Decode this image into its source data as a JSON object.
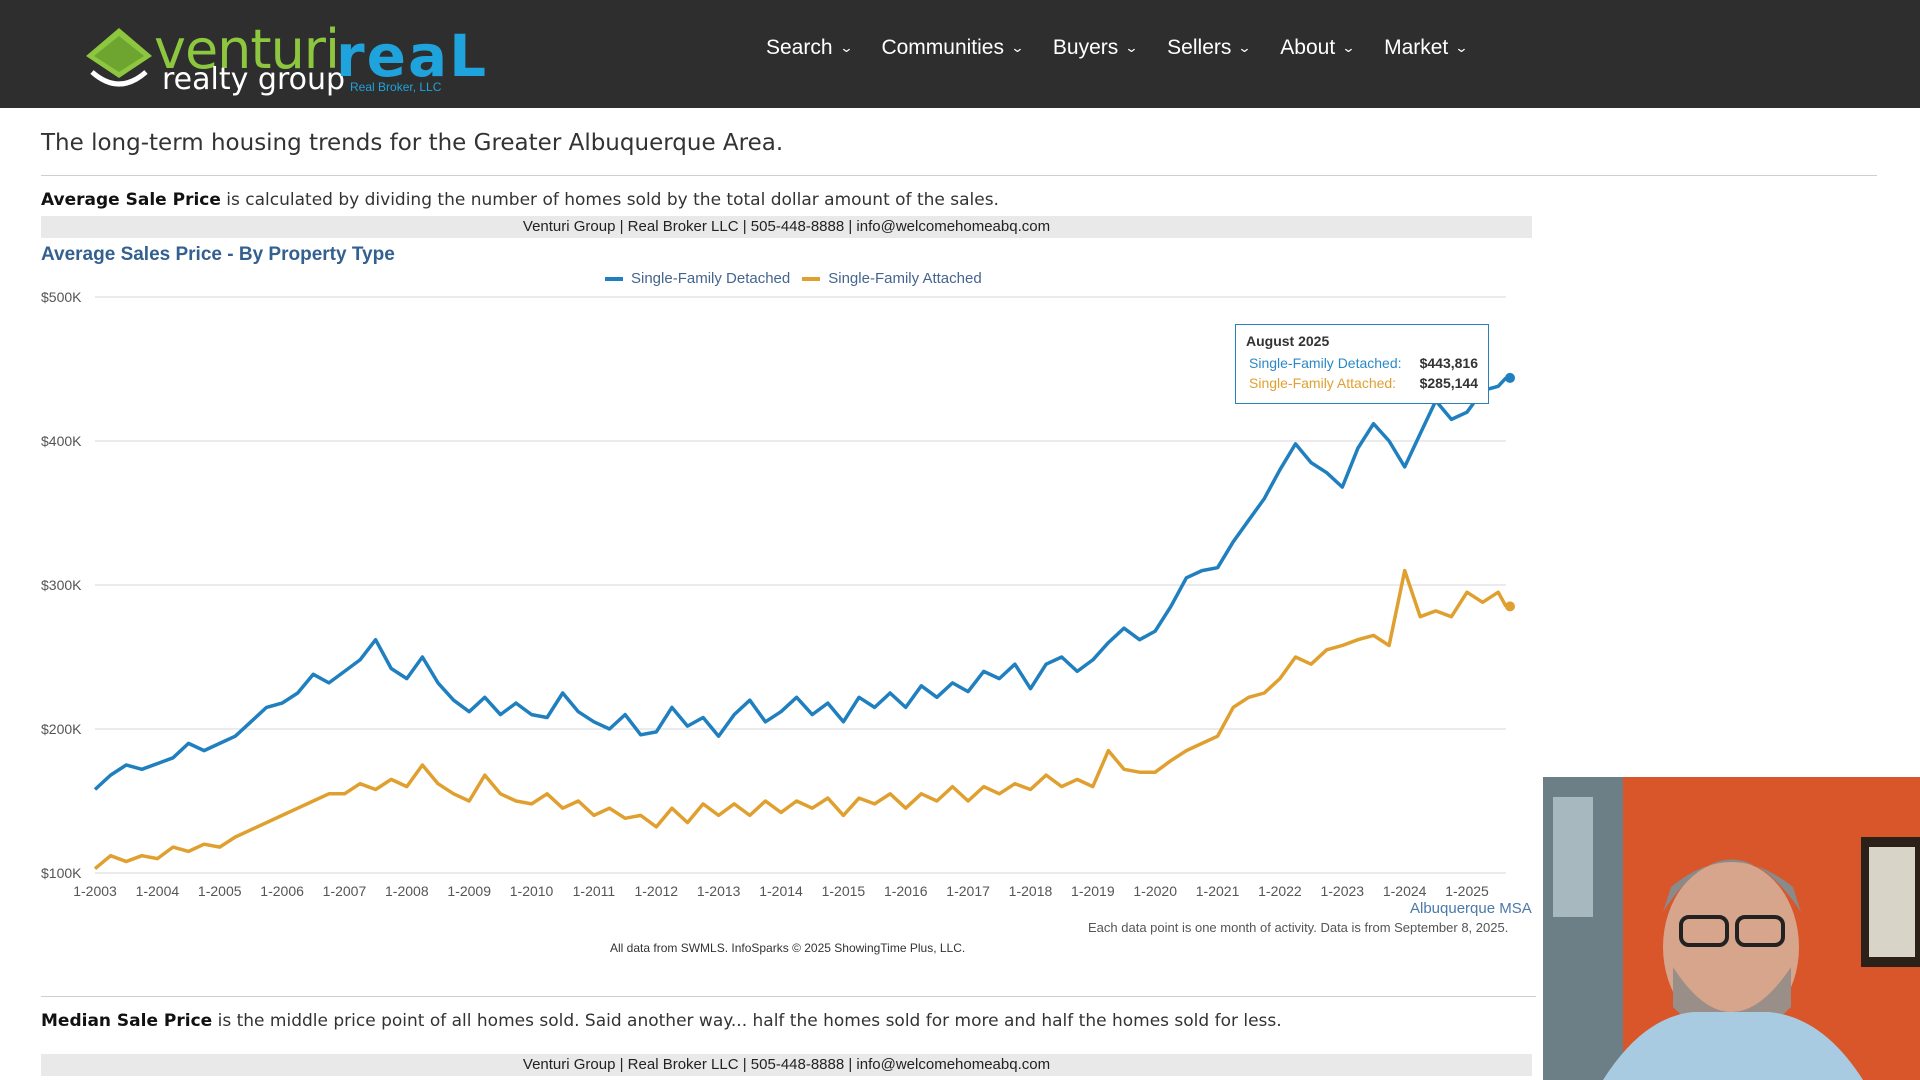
{
  "header": {
    "logo_venturi": "venturi",
    "logo_realty_group": "realty group",
    "logo_real": "reaL",
    "logo_real_broker": "Real Broker, LLC",
    "nav": [
      "Search",
      "Communities",
      "Buyers",
      "Sellers",
      "About",
      "Market"
    ]
  },
  "intro": "The long-term housing trends for the Greater Albuquerque Area.",
  "section1": {
    "term": "Average Sale Price",
    "text": " is calculated by dividing the number of homes sold by the total dollar amount of the sales.",
    "contact": "Venturi Group | Real Broker LLC | 505-448-8888 | info@welcomehomeabq.com"
  },
  "chart_data": {
    "type": "line",
    "title": "Average Sales Price - By Property Type",
    "ylim": [
      100000,
      500000
    ],
    "y_ticks": [
      {
        "value": 100000,
        "label": "$100K"
      },
      {
        "value": 200000,
        "label": "$200K"
      },
      {
        "value": 300000,
        "label": "$300K"
      },
      {
        "value": 400000,
        "label": "$400K"
      },
      {
        "value": 500000,
        "label": "$500K"
      }
    ],
    "x_ticks": [
      "1-2003",
      "1-2004",
      "1-2005",
      "1-2006",
      "1-2007",
      "1-2008",
      "1-2009",
      "1-2010",
      "1-2011",
      "1-2012",
      "1-2013",
      "1-2014",
      "1-2015",
      "1-2016",
      "1-2017",
      "1-2018",
      "1-2019",
      "1-2020",
      "1-2021",
      "1-2022",
      "1-2023",
      "1-2024",
      "1-2025"
    ],
    "x_start_year": 2003,
    "x_end_year": 2025.625,
    "grid": true,
    "legend_position": "top-center",
    "series": [
      {
        "name": "Single-Family Detached",
        "color": "#1f7fbf",
        "points": [
          {
            "x": 2003.0,
            "y": 158000
          },
          {
            "x": 2003.25,
            "y": 168000
          },
          {
            "x": 2003.5,
            "y": 175000
          },
          {
            "x": 2003.75,
            "y": 172000
          },
          {
            "x": 2004.0,
            "y": 176000
          },
          {
            "x": 2004.25,
            "y": 180000
          },
          {
            "x": 2004.5,
            "y": 190000
          },
          {
            "x": 2004.75,
            "y": 185000
          },
          {
            "x": 2005.0,
            "y": 190000
          },
          {
            "x": 2005.25,
            "y": 195000
          },
          {
            "x": 2005.5,
            "y": 205000
          },
          {
            "x": 2005.75,
            "y": 215000
          },
          {
            "x": 2006.0,
            "y": 218000
          },
          {
            "x": 2006.25,
            "y": 225000
          },
          {
            "x": 2006.5,
            "y": 238000
          },
          {
            "x": 2006.75,
            "y": 232000
          },
          {
            "x": 2007.0,
            "y": 240000
          },
          {
            "x": 2007.25,
            "y": 248000
          },
          {
            "x": 2007.5,
            "y": 262000
          },
          {
            "x": 2007.75,
            "y": 242000
          },
          {
            "x": 2008.0,
            "y": 235000
          },
          {
            "x": 2008.25,
            "y": 250000
          },
          {
            "x": 2008.5,
            "y": 232000
          },
          {
            "x": 2008.75,
            "y": 220000
          },
          {
            "x": 2009.0,
            "y": 212000
          },
          {
            "x": 2009.25,
            "y": 222000
          },
          {
            "x": 2009.5,
            "y": 210000
          },
          {
            "x": 2009.75,
            "y": 218000
          },
          {
            "x": 2010.0,
            "y": 210000
          },
          {
            "x": 2010.25,
            "y": 208000
          },
          {
            "x": 2010.5,
            "y": 225000
          },
          {
            "x": 2010.75,
            "y": 212000
          },
          {
            "x": 2011.0,
            "y": 205000
          },
          {
            "x": 2011.25,
            "y": 200000
          },
          {
            "x": 2011.5,
            "y": 210000
          },
          {
            "x": 2011.75,
            "y": 196000
          },
          {
            "x": 2012.0,
            "y": 198000
          },
          {
            "x": 2012.25,
            "y": 215000
          },
          {
            "x": 2012.5,
            "y": 202000
          },
          {
            "x": 2012.75,
            "y": 208000
          },
          {
            "x": 2013.0,
            "y": 195000
          },
          {
            "x": 2013.25,
            "y": 210000
          },
          {
            "x": 2013.5,
            "y": 220000
          },
          {
            "x": 2013.75,
            "y": 205000
          },
          {
            "x": 2014.0,
            "y": 212000
          },
          {
            "x": 2014.25,
            "y": 222000
          },
          {
            "x": 2014.5,
            "y": 210000
          },
          {
            "x": 2014.75,
            "y": 218000
          },
          {
            "x": 2015.0,
            "y": 205000
          },
          {
            "x": 2015.25,
            "y": 222000
          },
          {
            "x": 2015.5,
            "y": 215000
          },
          {
            "x": 2015.75,
            "y": 225000
          },
          {
            "x": 2016.0,
            "y": 215000
          },
          {
            "x": 2016.25,
            "y": 230000
          },
          {
            "x": 2016.5,
            "y": 222000
          },
          {
            "x": 2016.75,
            "y": 232000
          },
          {
            "x": 2017.0,
            "y": 226000
          },
          {
            "x": 2017.25,
            "y": 240000
          },
          {
            "x": 2017.5,
            "y": 235000
          },
          {
            "x": 2017.75,
            "y": 245000
          },
          {
            "x": 2018.0,
            "y": 228000
          },
          {
            "x": 2018.25,
            "y": 245000
          },
          {
            "x": 2018.5,
            "y": 250000
          },
          {
            "x": 2018.75,
            "y": 240000
          },
          {
            "x": 2019.0,
            "y": 248000
          },
          {
            "x": 2019.25,
            "y": 260000
          },
          {
            "x": 2019.5,
            "y": 270000
          },
          {
            "x": 2019.75,
            "y": 262000
          },
          {
            "x": 2020.0,
            "y": 268000
          },
          {
            "x": 2020.25,
            "y": 285000
          },
          {
            "x": 2020.5,
            "y": 305000
          },
          {
            "x": 2020.75,
            "y": 310000
          },
          {
            "x": 2021.0,
            "y": 312000
          },
          {
            "x": 2021.25,
            "y": 330000
          },
          {
            "x": 2021.5,
            "y": 345000
          },
          {
            "x": 2021.75,
            "y": 360000
          },
          {
            "x": 2022.0,
            "y": 380000
          },
          {
            "x": 2022.25,
            "y": 398000
          },
          {
            "x": 2022.5,
            "y": 385000
          },
          {
            "x": 2022.75,
            "y": 378000
          },
          {
            "x": 2023.0,
            "y": 368000
          },
          {
            "x": 2023.25,
            "y": 395000
          },
          {
            "x": 2023.5,
            "y": 412000
          },
          {
            "x": 2023.75,
            "y": 400000
          },
          {
            "x": 2024.0,
            "y": 382000
          },
          {
            "x": 2024.25,
            "y": 405000
          },
          {
            "x": 2024.5,
            "y": 428000
          },
          {
            "x": 2024.75,
            "y": 415000
          },
          {
            "x": 2025.0,
            "y": 420000
          },
          {
            "x": 2025.25,
            "y": 435000
          },
          {
            "x": 2025.5,
            "y": 438000
          },
          {
            "x": 2025.625,
            "y": 443816
          }
        ]
      },
      {
        "name": "Single-Family Attached",
        "color": "#e0a030",
        "points": [
          {
            "x": 2003.0,
            "y": 103000
          },
          {
            "x": 2003.25,
            "y": 112000
          },
          {
            "x": 2003.5,
            "y": 108000
          },
          {
            "x": 2003.75,
            "y": 112000
          },
          {
            "x": 2004.0,
            "y": 110000
          },
          {
            "x": 2004.25,
            "y": 118000
          },
          {
            "x": 2004.5,
            "y": 115000
          },
          {
            "x": 2004.75,
            "y": 120000
          },
          {
            "x": 2005.0,
            "y": 118000
          },
          {
            "x": 2005.25,
            "y": 125000
          },
          {
            "x": 2005.5,
            "y": 130000
          },
          {
            "x": 2005.75,
            "y": 135000
          },
          {
            "x": 2006.0,
            "y": 140000
          },
          {
            "x": 2006.25,
            "y": 145000
          },
          {
            "x": 2006.5,
            "y": 150000
          },
          {
            "x": 2006.75,
            "y": 155000
          },
          {
            "x": 2007.0,
            "y": 155000
          },
          {
            "x": 2007.25,
            "y": 162000
          },
          {
            "x": 2007.5,
            "y": 158000
          },
          {
            "x": 2007.75,
            "y": 165000
          },
          {
            "x": 2008.0,
            "y": 160000
          },
          {
            "x": 2008.25,
            "y": 175000
          },
          {
            "x": 2008.5,
            "y": 162000
          },
          {
            "x": 2008.75,
            "y": 155000
          },
          {
            "x": 2009.0,
            "y": 150000
          },
          {
            "x": 2009.25,
            "y": 168000
          },
          {
            "x": 2009.5,
            "y": 155000
          },
          {
            "x": 2009.75,
            "y": 150000
          },
          {
            "x": 2010.0,
            "y": 148000
          },
          {
            "x": 2010.25,
            "y": 155000
          },
          {
            "x": 2010.5,
            "y": 145000
          },
          {
            "x": 2010.75,
            "y": 150000
          },
          {
            "x": 2011.0,
            "y": 140000
          },
          {
            "x": 2011.25,
            "y": 145000
          },
          {
            "x": 2011.5,
            "y": 138000
          },
          {
            "x": 2011.75,
            "y": 140000
          },
          {
            "x": 2012.0,
            "y": 132000
          },
          {
            "x": 2012.25,
            "y": 145000
          },
          {
            "x": 2012.5,
            "y": 135000
          },
          {
            "x": 2012.75,
            "y": 148000
          },
          {
            "x": 2013.0,
            "y": 140000
          },
          {
            "x": 2013.25,
            "y": 148000
          },
          {
            "x": 2013.5,
            "y": 140000
          },
          {
            "x": 2013.75,
            "y": 150000
          },
          {
            "x": 2014.0,
            "y": 142000
          },
          {
            "x": 2014.25,
            "y": 150000
          },
          {
            "x": 2014.5,
            "y": 145000
          },
          {
            "x": 2014.75,
            "y": 152000
          },
          {
            "x": 2015.0,
            "y": 140000
          },
          {
            "x": 2015.25,
            "y": 152000
          },
          {
            "x": 2015.5,
            "y": 148000
          },
          {
            "x": 2015.75,
            "y": 155000
          },
          {
            "x": 2016.0,
            "y": 145000
          },
          {
            "x": 2016.25,
            "y": 155000
          },
          {
            "x": 2016.5,
            "y": 150000
          },
          {
            "x": 2016.75,
            "y": 160000
          },
          {
            "x": 2017.0,
            "y": 150000
          },
          {
            "x": 2017.25,
            "y": 160000
          },
          {
            "x": 2017.5,
            "y": 155000
          },
          {
            "x": 2017.75,
            "y": 162000
          },
          {
            "x": 2018.0,
            "y": 158000
          },
          {
            "x": 2018.25,
            "y": 168000
          },
          {
            "x": 2018.5,
            "y": 160000
          },
          {
            "x": 2018.75,
            "y": 165000
          },
          {
            "x": 2019.0,
            "y": 160000
          },
          {
            "x": 2019.25,
            "y": 185000
          },
          {
            "x": 2019.5,
            "y": 172000
          },
          {
            "x": 2019.75,
            "y": 170000
          },
          {
            "x": 2020.0,
            "y": 170000
          },
          {
            "x": 2020.25,
            "y": 178000
          },
          {
            "x": 2020.5,
            "y": 185000
          },
          {
            "x": 2020.75,
            "y": 190000
          },
          {
            "x": 2021.0,
            "y": 195000
          },
          {
            "x": 2021.25,
            "y": 215000
          },
          {
            "x": 2021.5,
            "y": 222000
          },
          {
            "x": 2021.75,
            "y": 225000
          },
          {
            "x": 2022.0,
            "y": 235000
          },
          {
            "x": 2022.25,
            "y": 250000
          },
          {
            "x": 2022.5,
            "y": 245000
          },
          {
            "x": 2022.75,
            "y": 255000
          },
          {
            "x": 2023.0,
            "y": 258000
          },
          {
            "x": 2023.25,
            "y": 262000
          },
          {
            "x": 2023.5,
            "y": 265000
          },
          {
            "x": 2023.75,
            "y": 258000
          },
          {
            "x": 2024.0,
            "y": 310000
          },
          {
            "x": 2024.25,
            "y": 278000
          },
          {
            "x": 2024.5,
            "y": 282000
          },
          {
            "x": 2024.75,
            "y": 278000
          },
          {
            "x": 2025.0,
            "y": 295000
          },
          {
            "x": 2025.25,
            "y": 288000
          },
          {
            "x": 2025.5,
            "y": 295000
          },
          {
            "x": 2025.625,
            "y": 285144
          }
        ]
      }
    ],
    "tooltip": {
      "title": "August 2025",
      "rows": [
        {
          "label": "Single-Family Detached:",
          "value": "$443,816"
        },
        {
          "label": "Single-Family Attached:",
          "value": "$285,144"
        }
      ]
    },
    "annotation_msa": "Albuquerque MSA",
    "note": "Each data point is one month of activity. Data is from September 8, 2025.",
    "source": "All data from SWMLS. InfoSparks © 2025 ShowingTime Plus, LLC."
  },
  "section2": {
    "term": "Median Sale Price",
    "text": " is the middle price point of all homes sold. Said another way... half the homes sold for more and half the homes sold for less.",
    "contact": "Venturi Group | Real Broker LLC | 505-448-8888 | info@welcomehomeabq.com"
  },
  "colors": {
    "topbar": "#2e2e2e",
    "brand_green": "#8dc63f",
    "brand_blue": "#1fa3dd",
    "detached": "#1f7fbf",
    "attached": "#e0a030"
  }
}
